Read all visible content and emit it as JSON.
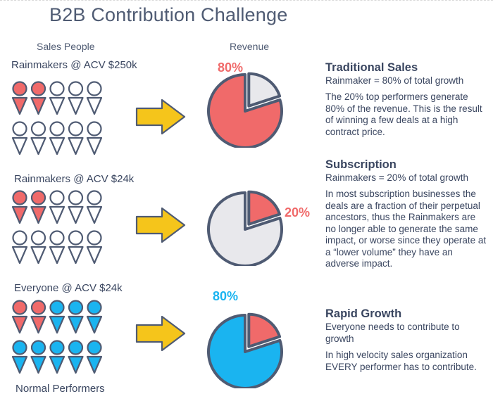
{
  "title": "B2B Contribution Challenge",
  "headers": {
    "left": "Sales People",
    "middle": "Revenue"
  },
  "colors": {
    "red": "#f06a6a",
    "gray": "#e8e8ec",
    "blue": "#1ab4f0",
    "outline": "#4f5b73",
    "arrow": "#f5c51b"
  },
  "rows": [
    {
      "label": "Rainmakers @ ACV $250k",
      "grid_top": [
        "red",
        "red",
        "empty",
        "empty",
        "empty"
      ],
      "grid_bottom": [
        "empty",
        "empty",
        "empty",
        "empty",
        "empty"
      ],
      "pie": {
        "main_share": 80,
        "main_color": "red",
        "slice_color": "gray"
      },
      "pct": "80%",
      "pct_color": "#f06a6a",
      "desc": {
        "title": "Traditional Sales",
        "subtitle": "Rainmaker = 80% of total growth",
        "body": "The 20% top performers generate 80% of the revenue. This is the result of winning a few deals at a high contract price."
      }
    },
    {
      "label": "Rainmakers @ ACV $24k",
      "grid_top": [
        "red",
        "red",
        "empty",
        "empty",
        "empty"
      ],
      "grid_bottom": [
        "empty",
        "empty",
        "empty",
        "empty",
        "empty"
      ],
      "pie": {
        "main_share": 80,
        "main_color": "gray",
        "slice_color": "red"
      },
      "pct": "20%",
      "pct_color": "#f06a6a",
      "desc": {
        "title": "Subscription",
        "subtitle": "Rainmakers = 20% of total growth",
        "body": "In most subscription businesses the deals are a fraction of their perpetual ancestors, thus the Rainmakers are no longer able to generate the same impact, or worse since they operate at a “lower volume” they have an adverse impact."
      }
    },
    {
      "label": "Everyone @ ACV $24k",
      "grid_top": [
        "red",
        "red",
        "blue",
        "blue",
        "blue"
      ],
      "grid_bottom": [
        "blue",
        "blue",
        "blue",
        "blue",
        "blue"
      ],
      "pie": {
        "main_share": 80,
        "main_color": "blue",
        "slice_color": "red"
      },
      "pct": "80%",
      "pct_color": "#1ab4f0",
      "desc": {
        "title": "Rapid Growth",
        "subtitle": "Everyone needs to contribute to growth",
        "body": "In high velocity sales organization EVERY performer has to contribute."
      }
    }
  ],
  "footer_label": "Normal Performers"
}
